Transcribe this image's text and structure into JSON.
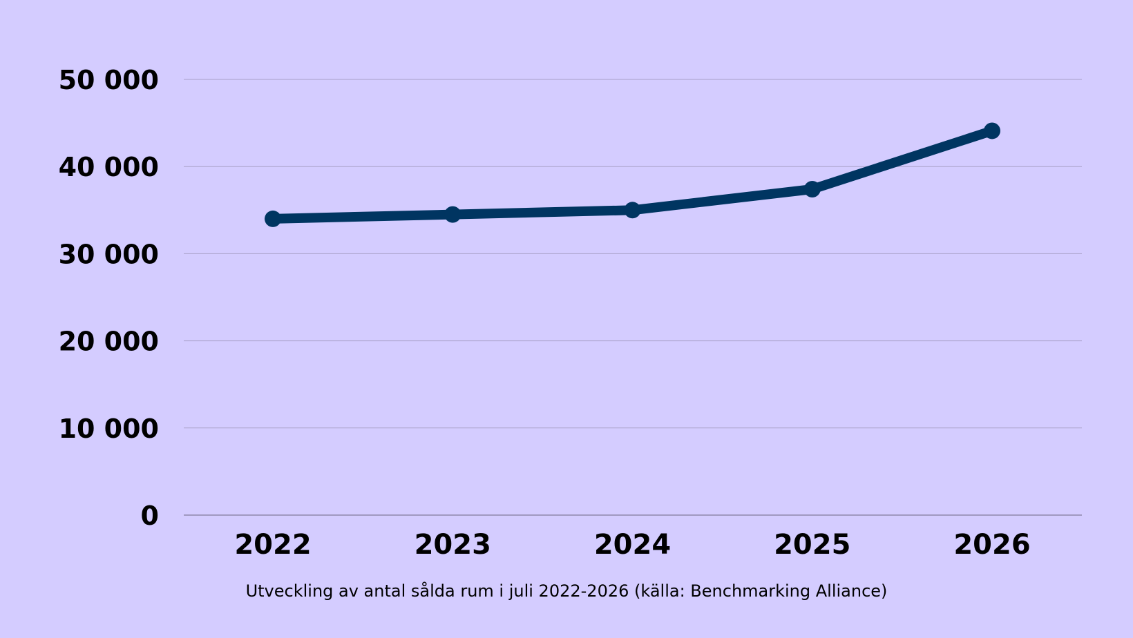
{
  "chart_data": {
    "type": "line",
    "categories": [
      "2022",
      "2023",
      "2024",
      "2025",
      "2026"
    ],
    "series": [
      {
        "values": [
          34000,
          34500,
          35000,
          37400,
          44100
        ],
        "color": "#003561"
      }
    ],
    "ylim": [
      0,
      50000
    ],
    "yticks": [
      0,
      10000,
      20000,
      30000,
      40000,
      50000
    ],
    "ytick_labels": [
      "0",
      "10 000",
      "20 000",
      "30 000",
      "40 000",
      "50 000"
    ],
    "grid": true,
    "caption": "Utveckling av antal sålda rum i juli 2022-2026 (källa: Benchmarking Alliance)"
  },
  "colors": {
    "background": "#d4ccff",
    "gridline": "#a9a1c9",
    "line": "#003561"
  }
}
